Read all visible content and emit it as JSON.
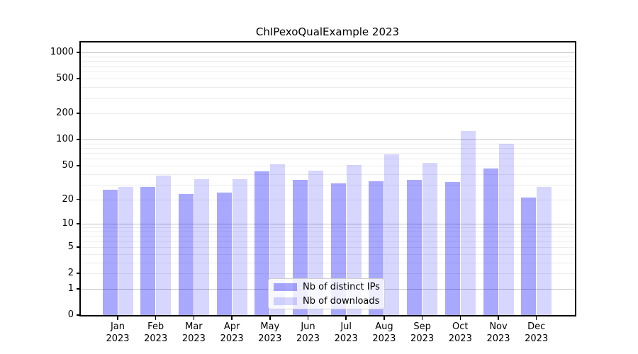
{
  "title": "ChIPexoQualExample 2023",
  "chart_data": {
    "type": "bar",
    "title": "ChIPexoQualExample 2023",
    "year_label": "2023",
    "categories": [
      "Jan",
      "Feb",
      "Mar",
      "Apr",
      "May",
      "Jun",
      "Jul",
      "Aug",
      "Sep",
      "Oct",
      "Nov",
      "Dec"
    ],
    "series": [
      {
        "name": "Nb of distinct IPs",
        "values": [
          26,
          28,
          23,
          24,
          43,
          34,
          31,
          33,
          34,
          32,
          46,
          21
        ]
      },
      {
        "name": "Nb of downloads",
        "values": [
          28,
          38,
          35,
          35,
          52,
          44,
          51,
          67,
          54,
          126,
          90,
          28
        ]
      }
    ],
    "y_scale": "log1p",
    "ylim": [
      0,
      1300
    ],
    "y_ticks": [
      0,
      1,
      2,
      5,
      10,
      20,
      50,
      100,
      200,
      500,
      1000
    ],
    "grid_major": [
      1,
      10,
      100,
      1000
    ],
    "grid_minor": [
      2,
      3,
      4,
      5,
      6,
      7,
      8,
      9,
      20,
      30,
      40,
      50,
      60,
      70,
      80,
      90,
      200,
      300,
      400,
      500,
      600,
      700,
      800,
      900
    ],
    "grid": "on",
    "legend_position": "inside-bottom-center",
    "colors": {
      "bar_distinct_ips": "rgba(0,0,255,0.34)",
      "bar_downloads": "rgba(0,0,255,0.16)",
      "bar_distinct_ips_hex": "#aaaaf7",
      "bar_downloads_hex": "#d8d8f8",
      "grid_major": "#c4c4c4",
      "grid_minor": "#ececec",
      "axis": "#000000"
    }
  },
  "legend": {
    "items": [
      {
        "label": "Nb of distinct IPs"
      },
      {
        "label": "Nb of downloads"
      }
    ]
  }
}
